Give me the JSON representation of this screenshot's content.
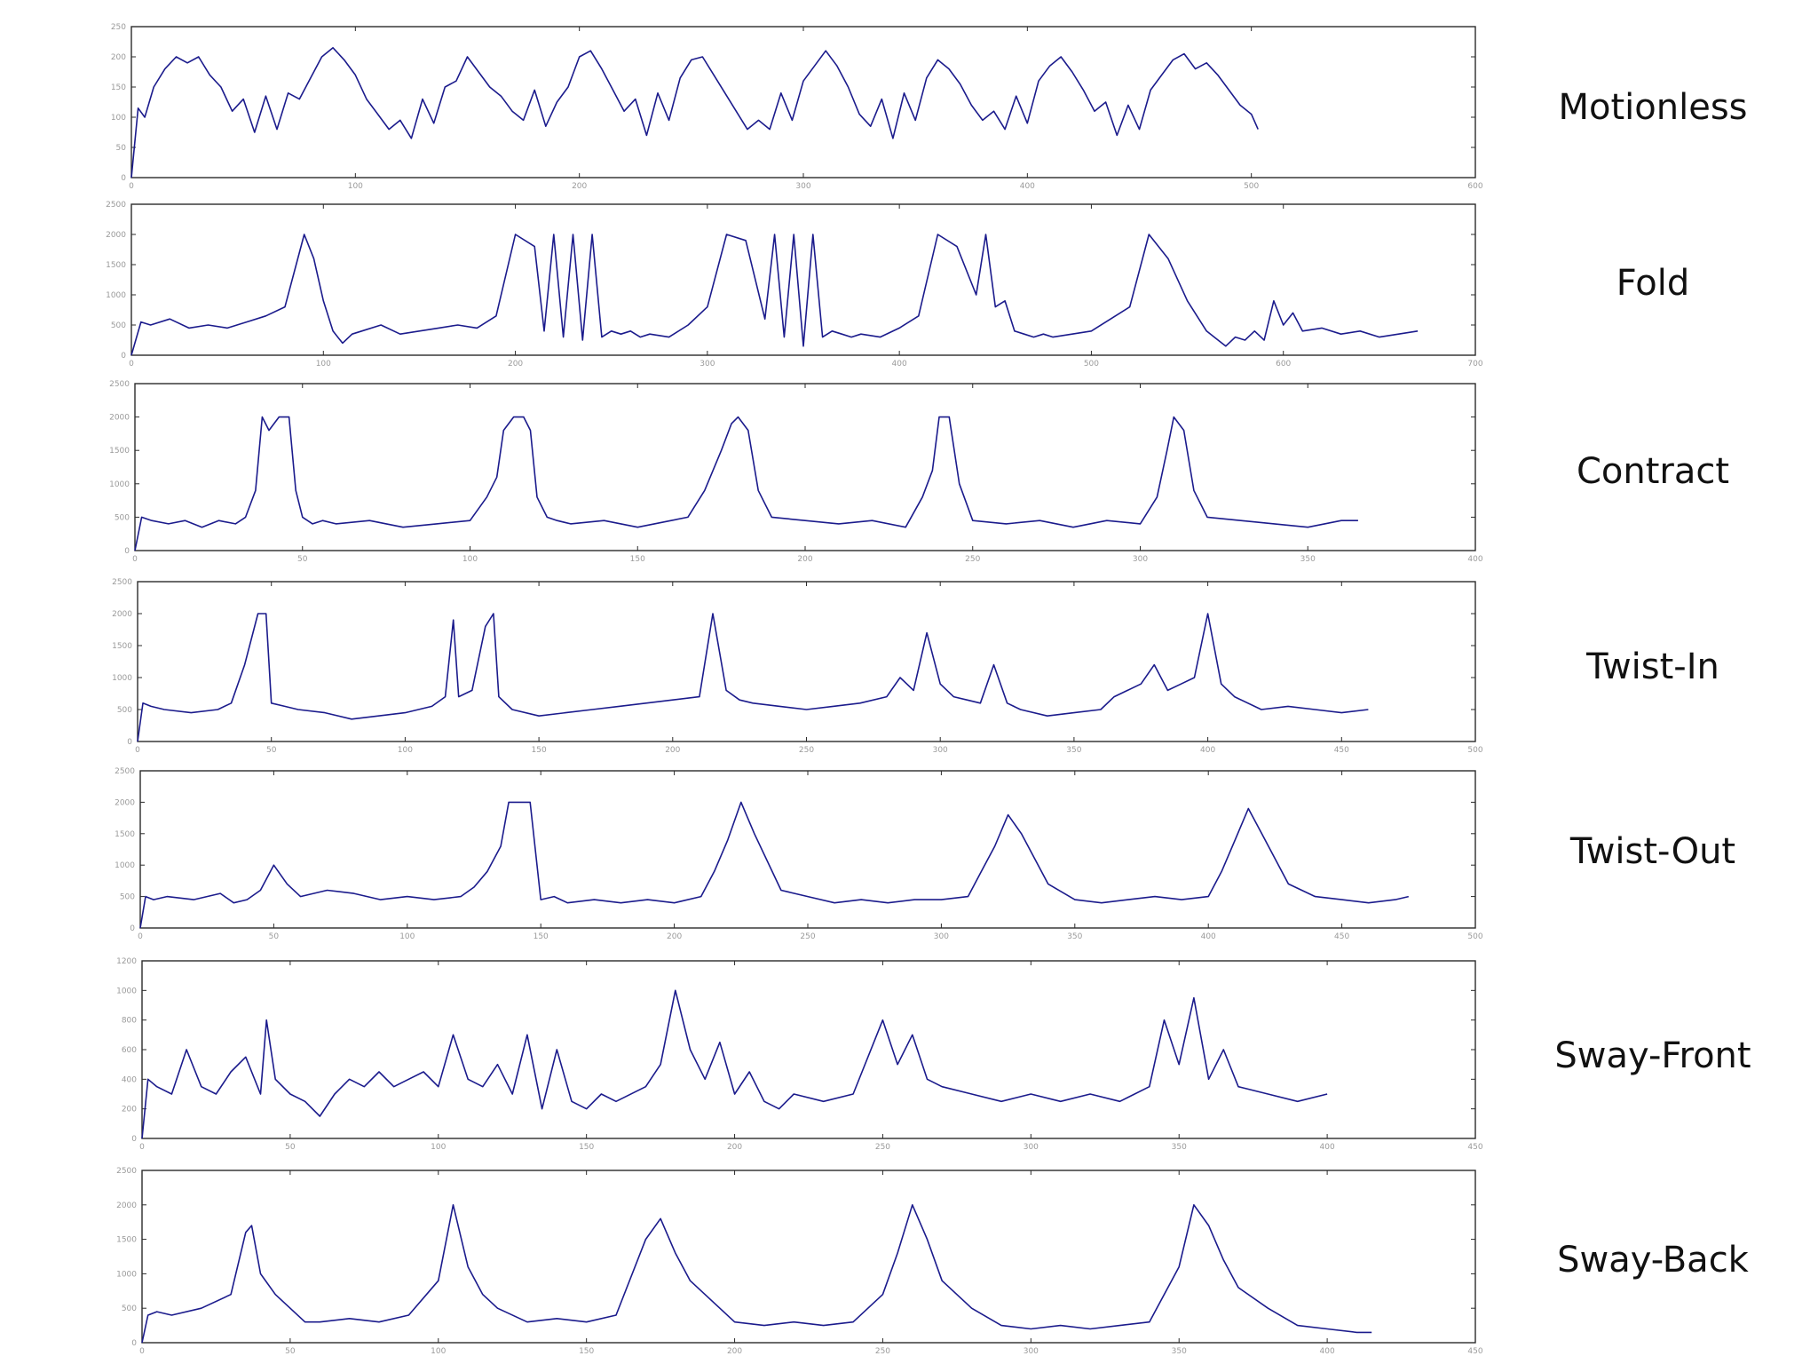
{
  "chart_data": [
    {
      "type": "line",
      "label": "Motionless",
      "xlim": [
        0,
        600
      ],
      "ylim": [
        0,
        250
      ],
      "xticks": [
        0,
        100,
        200,
        300,
        400,
        500,
        600
      ],
      "yticks": [
        0,
        50,
        100,
        150,
        200,
        250
      ],
      "xtick_labels": [
        "0",
        "100",
        "200",
        "300",
        "400",
        "500",
        "600"
      ],
      "ytick_labels": [
        "0",
        "50",
        "100",
        "150",
        "200",
        "250"
      ],
      "x": [
        0,
        3,
        6,
        10,
        15,
        20,
        25,
        30,
        35,
        40,
        45,
        50,
        55,
        60,
        65,
        70,
        75,
        80,
        85,
        90,
        95,
        100,
        105,
        110,
        115,
        120,
        125,
        130,
        135,
        140,
        145,
        150,
        155,
        160,
        165,
        170,
        175,
        180,
        185,
        190,
        195,
        200,
        205,
        210,
        215,
        220,
        225,
        230,
        235,
        240,
        245,
        250,
        255,
        260,
        265,
        270,
        275,
        280,
        285,
        290,
        295,
        300,
        305,
        310,
        315,
        320,
        325,
        330,
        335,
        340,
        345,
        350,
        355,
        360,
        365,
        370,
        375,
        380,
        385,
        390,
        395,
        400,
        405,
        410,
        415,
        420,
        425,
        430,
        435,
        440,
        445,
        450,
        455,
        460,
        465,
        470,
        475,
        480,
        485,
        490,
        495,
        500,
        503
      ],
      "y": [
        0,
        115,
        100,
        150,
        180,
        200,
        190,
        200,
        170,
        150,
        110,
        130,
        75,
        135,
        80,
        140,
        130,
        165,
        200,
        215,
        195,
        170,
        130,
        105,
        80,
        95,
        65,
        130,
        90,
        150,
        160,
        200,
        175,
        150,
        135,
        110,
        95,
        145,
        85,
        125,
        150,
        200,
        210,
        180,
        145,
        110,
        130,
        70,
        140,
        95,
        165,
        195,
        200,
        170,
        140,
        110,
        80,
        95,
        80,
        140,
        95,
        160,
        185,
        210,
        185,
        150,
        105,
        85,
        130,
        65,
        140,
        95,
        165,
        195,
        180,
        155,
        120,
        95,
        110,
        80,
        135,
        90,
        160,
        185,
        200,
        175,
        145,
        110,
        125,
        70,
        120,
        80,
        145,
        170,
        195,
        205,
        180,
        190,
        170,
        145,
        120,
        105,
        80
      ]
    },
    {
      "type": "line",
      "label": "Fold",
      "xlim": [
        0,
        700
      ],
      "ylim": [
        0,
        2500
      ],
      "xticks": [
        0,
        100,
        200,
        300,
        400,
        500,
        600,
        700
      ],
      "yticks": [
        0,
        500,
        1000,
        1500,
        2000,
        2500
      ],
      "xtick_labels": [
        "0",
        "100",
        "200",
        "300",
        "400",
        "500",
        "600",
        "700"
      ],
      "ytick_labels": [
        "0",
        "500",
        "1000",
        "1500",
        "2000",
        "2500"
      ],
      "x": [
        0,
        5,
        10,
        20,
        30,
        40,
        50,
        60,
        70,
        80,
        90,
        95,
        100,
        105,
        110,
        115,
        120,
        130,
        140,
        150,
        160,
        170,
        180,
        190,
        200,
        210,
        215,
        220,
        225,
        230,
        235,
        240,
        245,
        250,
        255,
        260,
        265,
        270,
        280,
        290,
        300,
        310,
        320,
        330,
        335,
        340,
        345,
        350,
        355,
        360,
        365,
        370,
        375,
        380,
        390,
        400,
        410,
        420,
        430,
        440,
        445,
        450,
        455,
        460,
        465,
        470,
        475,
        480,
        490,
        500,
        510,
        520,
        530,
        540,
        550,
        560,
        570,
        575,
        580,
        585,
        590,
        595,
        600,
        605,
        610,
        620,
        630,
        640,
        650,
        660,
        670
      ],
      "y": [
        0,
        550,
        500,
        600,
        450,
        500,
        450,
        550,
        650,
        800,
        2000,
        1600,
        900,
        400,
        200,
        350,
        400,
        500,
        350,
        400,
        450,
        500,
        450,
        650,
        2000,
        1800,
        400,
        2000,
        300,
        2000,
        250,
        2000,
        300,
        400,
        350,
        400,
        300,
        350,
        300,
        500,
        800,
        2000,
        1900,
        600,
        2000,
        300,
        2000,
        150,
        2000,
        300,
        400,
        350,
        300,
        350,
        300,
        450,
        650,
        2000,
        1800,
        1000,
        2000,
        800,
        900,
        400,
        350,
        300,
        350,
        300,
        350,
        400,
        600,
        800,
        2000,
        1600,
        900,
        400,
        150,
        300,
        250,
        400,
        250,
        900,
        500,
        700,
        400,
        450,
        350,
        400,
        300,
        350,
        400
      ]
    },
    {
      "type": "line",
      "label": "Contract",
      "xlim": [
        0,
        400
      ],
      "ylim": [
        0,
        2500
      ],
      "xticks": [
        0,
        50,
        100,
        150,
        200,
        250,
        300,
        350,
        400
      ],
      "yticks": [
        0,
        500,
        1000,
        1500,
        2000,
        2500
      ],
      "xtick_labels": [
        "0",
        "50",
        "100",
        "150",
        "200",
        "250",
        "300",
        "350",
        "400"
      ],
      "ytick_labels": [
        "0",
        "500",
        "1000",
        "1500",
        "2000",
        "2500"
      ],
      "x": [
        0,
        2,
        5,
        10,
        15,
        20,
        25,
        30,
        33,
        36,
        38,
        40,
        43,
        46,
        48,
        50,
        53,
        56,
        60,
        70,
        80,
        90,
        100,
        105,
        108,
        110,
        113,
        116,
        118,
        120,
        123,
        126,
        130,
        140,
        150,
        160,
        165,
        170,
        175,
        178,
        180,
        183,
        186,
        190,
        200,
        210,
        220,
        230,
        235,
        238,
        240,
        243,
        246,
        250,
        260,
        270,
        280,
        290,
        300,
        305,
        308,
        310,
        313,
        316,
        320,
        330,
        340,
        350,
        360,
        365
      ],
      "y": [
        0,
        500,
        450,
        400,
        450,
        350,
        450,
        400,
        500,
        900,
        2000,
        1800,
        2000,
        2000,
        900,
        500,
        400,
        450,
        400,
        450,
        350,
        400,
        450,
        800,
        1100,
        1800,
        2000,
        2000,
        1800,
        800,
        500,
        450,
        400,
        450,
        350,
        450,
        500,
        900,
        1500,
        1900,
        2000,
        1800,
        900,
        500,
        450,
        400,
        450,
        350,
        800,
        1200,
        2000,
        2000,
        1000,
        450,
        400,
        450,
        350,
        450,
        400,
        800,
        1500,
        2000,
        1800,
        900,
        500,
        450,
        400,
        350,
        450,
        450
      ]
    },
    {
      "type": "line",
      "label": "Twist-In",
      "xlim": [
        0,
        500
      ],
      "ylim": [
        0,
        2500
      ],
      "xticks": [
        0,
        50,
        100,
        150,
        200,
        250,
        300,
        350,
        400,
        450,
        500
      ],
      "yticks": [
        0,
        500,
        1000,
        1500,
        2000,
        2500
      ],
      "xtick_labels": [
        "0",
        "50",
        "100",
        "150",
        "200",
        "250",
        "300",
        "350",
        "400",
        "450",
        "500"
      ],
      "ytick_labels": [
        "0",
        "500",
        "1000",
        "1500",
        "2000",
        "2500"
      ],
      "x": [
        0,
        2,
        5,
        10,
        20,
        30,
        35,
        40,
        45,
        48,
        50,
        55,
        60,
        70,
        80,
        90,
        100,
        110,
        115,
        118,
        120,
        125,
        130,
        133,
        135,
        140,
        150,
        160,
        170,
        180,
        190,
        200,
        210,
        215,
        220,
        225,
        230,
        240,
        250,
        260,
        270,
        280,
        285,
        290,
        295,
        300,
        305,
        310,
        315,
        320,
        325,
        330,
        340,
        350,
        360,
        365,
        370,
        375,
        380,
        385,
        390,
        395,
        400,
        405,
        410,
        420,
        430,
        440,
        450,
        460
      ],
      "y": [
        0,
        600,
        550,
        500,
        450,
        500,
        600,
        1200,
        2000,
        2000,
        600,
        550,
        500,
        450,
        350,
        400,
        450,
        550,
        700,
        1900,
        700,
        800,
        1800,
        2000,
        700,
        500,
        400,
        450,
        500,
        550,
        600,
        650,
        700,
        2000,
        800,
        650,
        600,
        550,
        500,
        550,
        600,
        700,
        1000,
        800,
        1700,
        900,
        700,
        650,
        600,
        1200,
        600,
        500,
        400,
        450,
        500,
        700,
        800,
        900,
        1200,
        800,
        900,
        1000,
        2000,
        900,
        700,
        500,
        550,
        500,
        450,
        500
      ]
    },
    {
      "type": "line",
      "label": "Twist-Out",
      "xlim": [
        0,
        500
      ],
      "ylim": [
        0,
        2500
      ],
      "xticks": [
        0,
        50,
        100,
        150,
        200,
        250,
        300,
        350,
        400,
        450,
        500
      ],
      "yticks": [
        0,
        500,
        1000,
        1500,
        2000,
        2500
      ],
      "xtick_labels": [
        "0",
        "50",
        "100",
        "150",
        "200",
        "250",
        "300",
        "350",
        "400",
        "450",
        "500"
      ],
      "ytick_labels": [
        "0",
        "500",
        "1000",
        "1500",
        "2000",
        "2500"
      ],
      "x": [
        0,
        2,
        5,
        10,
        20,
        30,
        35,
        40,
        45,
        50,
        55,
        60,
        70,
        80,
        90,
        100,
        110,
        120,
        125,
        130,
        135,
        138,
        140,
        143,
        146,
        150,
        155,
        160,
        170,
        180,
        190,
        200,
        210,
        215,
        220,
        225,
        230,
        240,
        250,
        260,
        270,
        280,
        290,
        300,
        310,
        315,
        320,
        325,
        330,
        340,
        350,
        360,
        370,
        380,
        390,
        400,
        405,
        410,
        415,
        420,
        430,
        440,
        450,
        460,
        470,
        475
      ],
      "y": [
        0,
        500,
        450,
        500,
        450,
        550,
        400,
        450,
        600,
        1000,
        700,
        500,
        600,
        550,
        450,
        500,
        450,
        500,
        650,
        900,
        1300,
        2000,
        2000,
        2000,
        2000,
        450,
        500,
        400,
        450,
        400,
        450,
        400,
        500,
        900,
        1400,
        2000,
        1500,
        600,
        500,
        400,
        450,
        400,
        450,
        450,
        500,
        900,
        1300,
        1800,
        1500,
        700,
        450,
        400,
        450,
        500,
        450,
        500,
        900,
        1400,
        1900,
        1500,
        700,
        500,
        450,
        400,
        450,
        500
      ]
    },
    {
      "type": "line",
      "label": "Sway-Front",
      "xlim": [
        0,
        450
      ],
      "ylim": [
        0,
        1200
      ],
      "xticks": [
        0,
        50,
        100,
        150,
        200,
        250,
        300,
        350,
        400,
        450
      ],
      "yticks": [
        0,
        200,
        400,
        600,
        800,
        1000,
        1200
      ],
      "xtick_labels": [
        "0",
        "50",
        "100",
        "150",
        "200",
        "250",
        "300",
        "350",
        "400",
        "450"
      ],
      "ytick_labels": [
        "0",
        "200",
        "400",
        "600",
        "800",
        "1000",
        "1200"
      ],
      "x": [
        0,
        2,
        5,
        10,
        15,
        20,
        25,
        30,
        35,
        40,
        42,
        45,
        50,
        55,
        60,
        65,
        70,
        75,
        80,
        85,
        90,
        95,
        100,
        105,
        110,
        115,
        120,
        125,
        130,
        135,
        140,
        145,
        150,
        155,
        160,
        170,
        175,
        180,
        185,
        190,
        195,
        200,
        205,
        210,
        215,
        220,
        230,
        240,
        250,
        255,
        260,
        265,
        270,
        280,
        290,
        300,
        310,
        320,
        330,
        340,
        345,
        350,
        355,
        360,
        365,
        370,
        380,
        390,
        400
      ],
      "y": [
        0,
        400,
        350,
        300,
        600,
        350,
        300,
        450,
        550,
        300,
        800,
        400,
        300,
        250,
        150,
        300,
        400,
        350,
        450,
        350,
        400,
        450,
        350,
        700,
        400,
        350,
        500,
        300,
        700,
        200,
        600,
        250,
        200,
        300,
        250,
        350,
        500,
        1000,
        600,
        400,
        650,
        300,
        450,
        250,
        200,
        300,
        250,
        300,
        800,
        500,
        700,
        400,
        350,
        300,
        250,
        300,
        250,
        300,
        250,
        350,
        800,
        500,
        950,
        400,
        600,
        350,
        300,
        250,
        300
      ]
    },
    {
      "type": "line",
      "label": "Sway-Back",
      "xlim": [
        0,
        450
      ],
      "ylim": [
        0,
        2500
      ],
      "xticks": [
        0,
        50,
        100,
        150,
        200,
        250,
        300,
        350,
        400,
        450
      ],
      "yticks": [
        0,
        500,
        1000,
        1500,
        2000,
        2500
      ],
      "xtick_labels": [
        "0",
        "50",
        "100",
        "150",
        "200",
        "250",
        "300",
        "350",
        "400",
        "450"
      ],
      "ytick_labels": [
        "0",
        "500",
        "1000",
        "1500",
        "2000",
        "2500"
      ],
      "x": [
        0,
        2,
        5,
        10,
        20,
        30,
        35,
        37,
        40,
        45,
        50,
        55,
        60,
        70,
        80,
        90,
        100,
        105,
        110,
        115,
        120,
        130,
        140,
        150,
        160,
        170,
        175,
        180,
        185,
        190,
        200,
        210,
        220,
        230,
        240,
        250,
        255,
        260,
        265,
        270,
        280,
        290,
        300,
        310,
        320,
        330,
        340,
        350,
        355,
        360,
        365,
        370,
        380,
        390,
        400,
        410,
        415
      ],
      "y": [
        0,
        400,
        450,
        400,
        500,
        700,
        1600,
        1700,
        1000,
        700,
        500,
        300,
        300,
        350,
        300,
        400,
        900,
        2000,
        1100,
        700,
        500,
        300,
        350,
        300,
        400,
        1500,
        1800,
        1300,
        900,
        700,
        300,
        250,
        300,
        250,
        300,
        700,
        1300,
        2000,
        1500,
        900,
        500,
        250,
        200,
        250,
        200,
        250,
        300,
        1100,
        2000,
        1700,
        1200,
        800,
        500,
        250,
        200,
        150,
        150
      ]
    }
  ]
}
